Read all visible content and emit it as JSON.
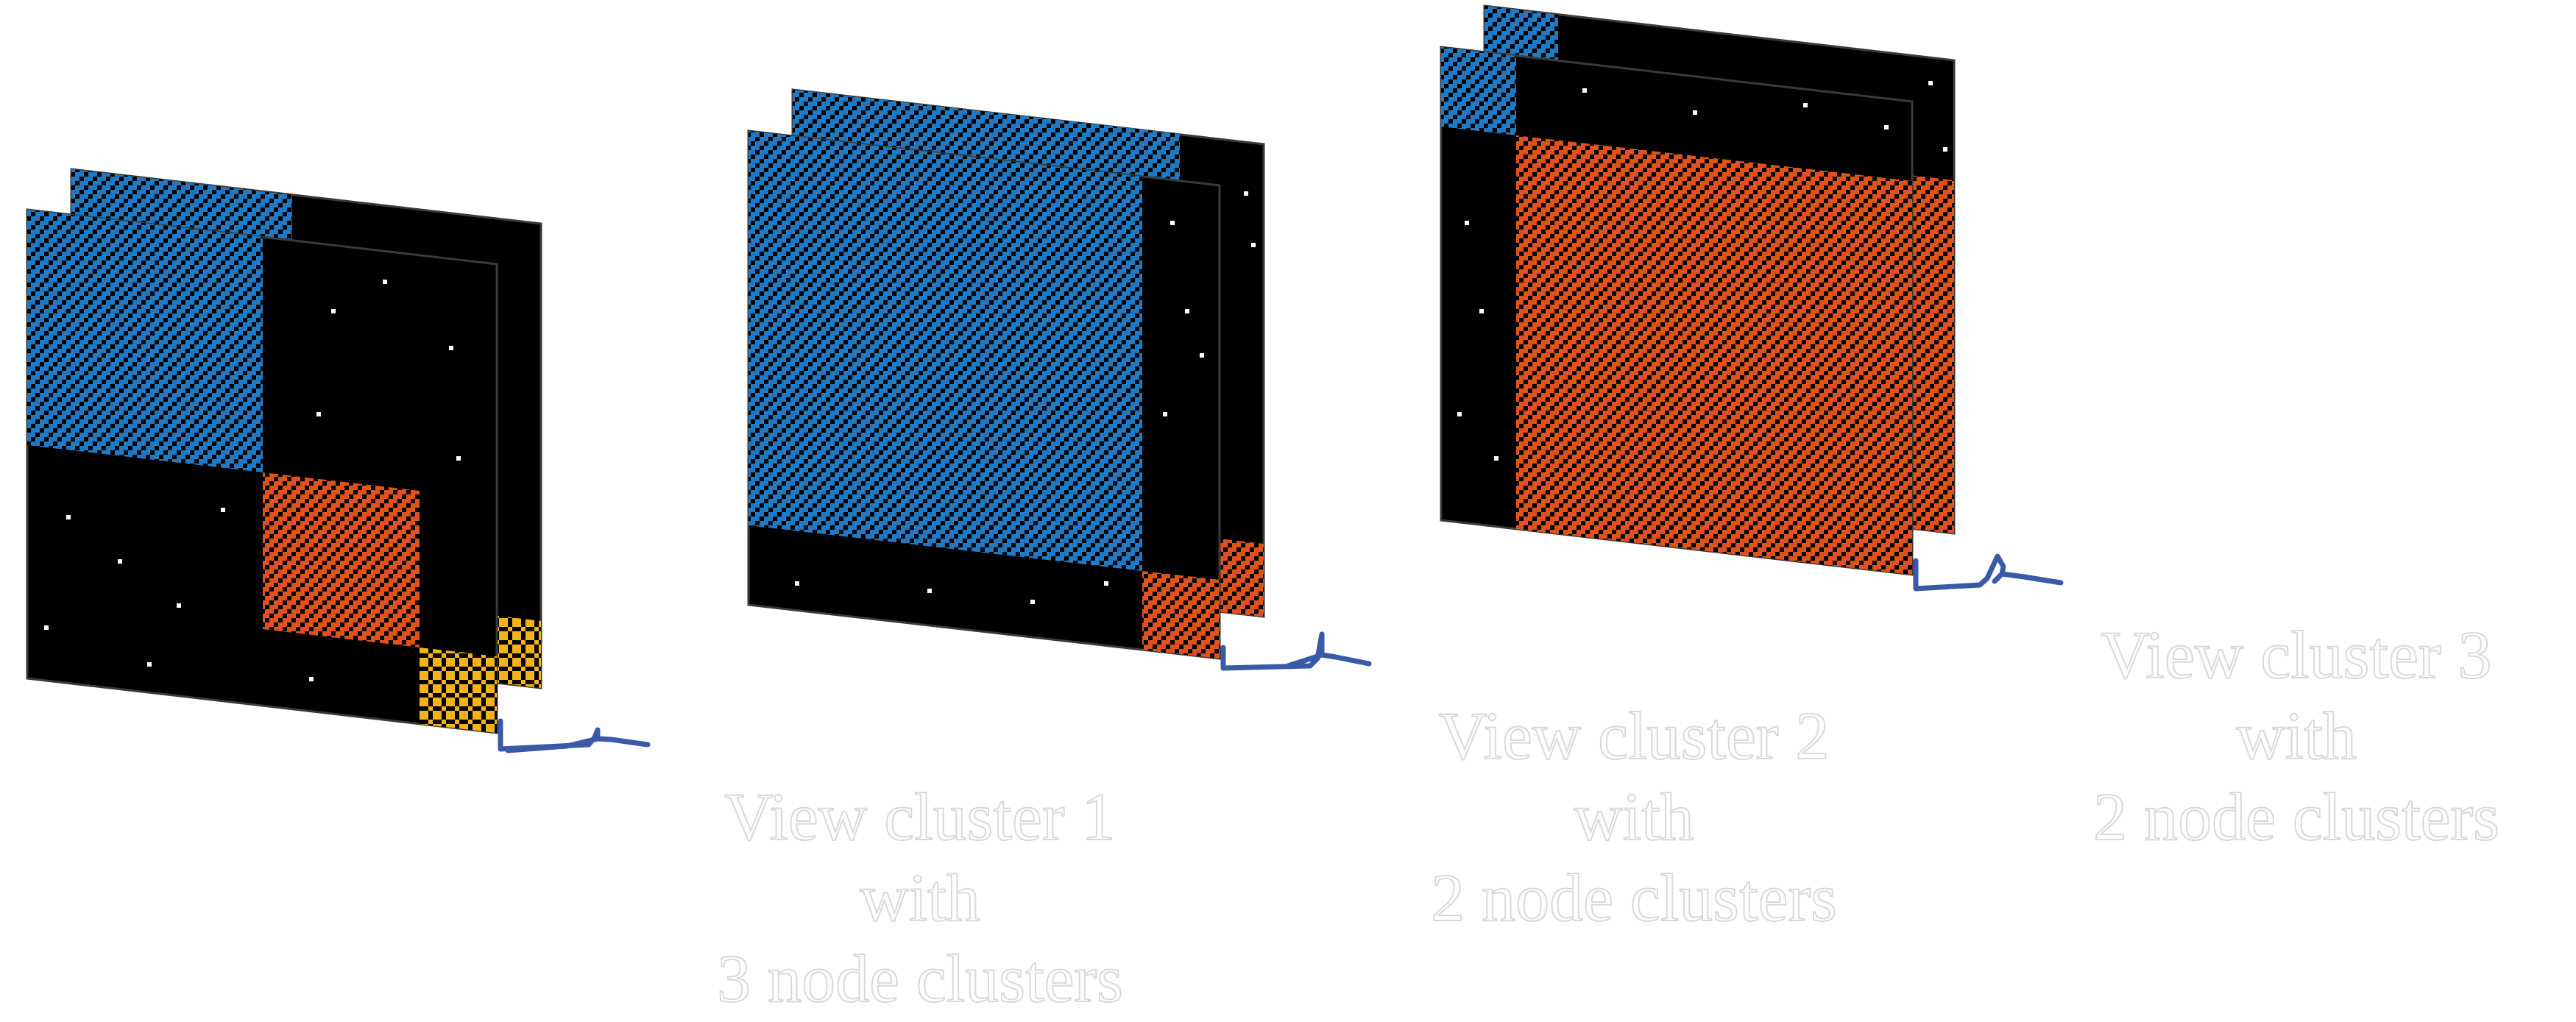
{
  "colors": {
    "background": "#ffffff",
    "matrix": "#000000",
    "cluster_1": "#1f7ac3",
    "cluster_2": "#e0521c",
    "cluster_3": "#f5b31a",
    "noise": "#ffffff",
    "brace": "#3a5aa8"
  },
  "views": [
    {
      "name": "view-cluster-1",
      "label_lines": [
        "View cluster 1",
        "with",
        "3 node clusters"
      ],
      "node_cluster_count": 3,
      "blocks": [
        "cluster_1",
        "cluster_2",
        "cluster_3"
      ]
    },
    {
      "name": "view-cluster-2",
      "label_lines": [
        "View cluster 2",
        "with",
        "2 node clusters"
      ],
      "node_cluster_count": 2,
      "blocks": [
        "cluster_1",
        "cluster_2"
      ]
    },
    {
      "name": "view-cluster-3",
      "label_lines": [
        "View cluster 3",
        "with",
        "2 node clusters"
      ],
      "node_cluster_count": 2,
      "blocks": [
        "cluster_1",
        "cluster_2"
      ]
    }
  ]
}
